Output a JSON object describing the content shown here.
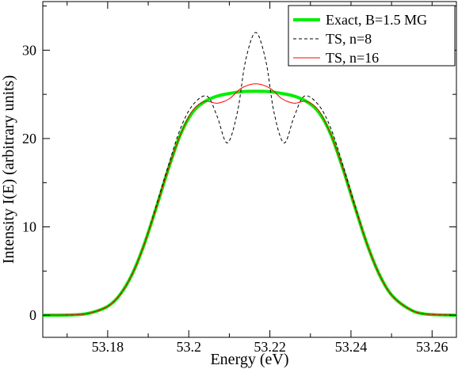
{
  "chart_data": {
    "type": "line",
    "xlabel": "Energy (eV)",
    "ylabel": "Intensity I(E) (arbitrary units)",
    "xlim": [
      53.164,
      53.266
    ],
    "ylim": [
      -2.5,
      35.5
    ],
    "xticks": [
      53.18,
      53.2,
      53.22,
      53.24,
      53.26
    ],
    "xtick_labels": [
      "53.18",
      "53.2",
      "53.22",
      "53.24",
      "53.26"
    ],
    "yticks": [
      0,
      10,
      20,
      30
    ],
    "ytick_labels": [
      "0",
      "10",
      "20",
      "30"
    ],
    "grid": false,
    "legend_position": "top-right",
    "series": [
      {
        "name": "Exact, B=1.5 MG",
        "color": "#00ee00",
        "style": "solid-thick",
        "x": [
          53.164,
          53.172,
          53.176,
          53.18,
          53.183,
          53.186,
          53.189,
          53.192,
          53.195,
          53.198,
          53.201,
          53.204,
          53.207,
          53.21,
          53.213,
          53.2165,
          53.22,
          53.223,
          53.226,
          53.229,
          53.232,
          53.235,
          53.238,
          53.241,
          53.244,
          53.247,
          53.25,
          53.254,
          53.258,
          53.266
        ],
        "y": [
          0.0,
          0.05,
          0.3,
          1.0,
          2.3,
          4.6,
          8.0,
          12.2,
          16.6,
          20.5,
          23.0,
          24.2,
          24.8,
          25.1,
          25.3,
          25.35,
          25.3,
          25.1,
          24.8,
          24.2,
          23.0,
          20.5,
          16.6,
          12.2,
          8.0,
          4.6,
          2.3,
          0.8,
          0.15,
          0.0
        ]
      },
      {
        "name": "TS, n=8",
        "color": "#000000",
        "style": "dashed",
        "x": [
          53.164,
          53.172,
          53.176,
          53.18,
          53.183,
          53.186,
          53.189,
          53.192,
          53.195,
          53.198,
          53.201,
          53.2045,
          53.207,
          53.2095,
          53.212,
          53.214,
          53.2165,
          53.219,
          53.221,
          53.2235,
          53.226,
          53.2285,
          53.232,
          53.235,
          53.238,
          53.241,
          53.244,
          53.247,
          53.25,
          53.254,
          53.258,
          53.266
        ],
        "y": [
          0.0,
          0.05,
          0.3,
          1.0,
          2.3,
          4.6,
          8.0,
          12.4,
          17.0,
          21.2,
          23.8,
          24.8,
          22.5,
          19.5,
          23.0,
          28.8,
          32.0,
          28.8,
          23.0,
          19.5,
          22.5,
          24.8,
          23.8,
          21.2,
          17.0,
          12.4,
          8.0,
          4.6,
          2.3,
          0.8,
          0.15,
          0.0
        ]
      },
      {
        "name": "TS, n=16",
        "color": "#ff0000",
        "style": "solid-thin",
        "x": [
          53.164,
          53.172,
          53.176,
          53.18,
          53.183,
          53.186,
          53.189,
          53.192,
          53.195,
          53.198,
          53.201,
          53.204,
          53.207,
          53.21,
          53.213,
          53.2165,
          53.22,
          53.223,
          53.226,
          53.229,
          53.232,
          53.235,
          53.238,
          53.241,
          53.244,
          53.247,
          53.25,
          53.254,
          53.258,
          53.266
        ],
        "y": [
          0.0,
          0.05,
          0.3,
          1.0,
          2.3,
          4.6,
          8.0,
          12.2,
          16.6,
          20.5,
          23.2,
          24.2,
          24.0,
          24.5,
          25.7,
          26.2,
          25.7,
          24.5,
          24.0,
          24.2,
          23.2,
          20.5,
          16.6,
          12.2,
          8.0,
          4.6,
          2.3,
          0.8,
          0.15,
          0.0
        ]
      }
    ]
  }
}
